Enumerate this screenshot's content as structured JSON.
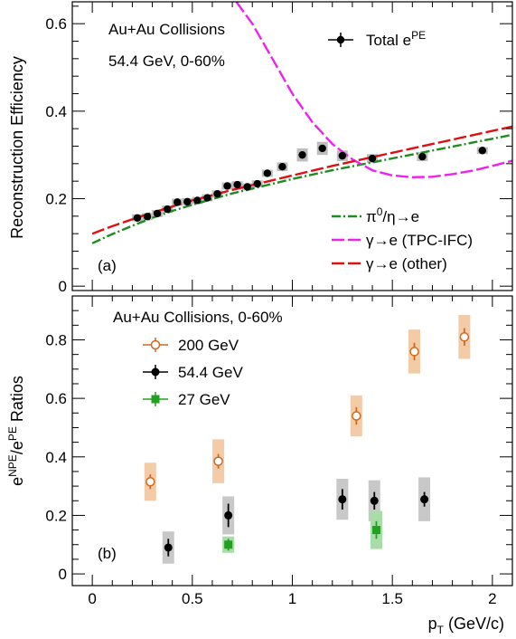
{
  "chart_data": [
    {
      "type": "scatter",
      "panel_label": "(a)",
      "annotations": [
        "Au+Au Collisions",
        "54.4 GeV, 0-60%"
      ],
      "ylabel": "Reconstruction Efficiency",
      "xlim": [
        -0.1,
        2.1
      ],
      "ylim": [
        -0.01,
        0.65
      ],
      "yticks": [
        0,
        0.2,
        0.4,
        0.6
      ],
      "ytick_labels": [
        "0",
        "0.2",
        "0.4",
        "0.6"
      ],
      "series": [
        {
          "name": "Total e",
          "name_sup": "PE",
          "color": "#000000",
          "marker": "circle",
          "x": [
            0.225,
            0.275,
            0.325,
            0.375,
            0.425,
            0.475,
            0.525,
            0.575,
            0.625,
            0.675,
            0.725,
            0.775,
            0.825,
            0.875,
            0.95,
            1.05,
            1.15,
            1.25,
            1.4,
            1.65,
            1.95
          ],
          "y": [
            0.156,
            0.159,
            0.166,
            0.176,
            0.192,
            0.193,
            0.196,
            0.202,
            0.211,
            0.229,
            0.232,
            0.227,
            0.234,
            0.258,
            0.273,
            0.3,
            0.315,
            0.298,
            0.292,
            0.296,
            0.31
          ],
          "syst": [
            0.008,
            0.008,
            0.008,
            0.008,
            0.008,
            0.008,
            0.008,
            0.008,
            0.008,
            0.008,
            0.008,
            0.008,
            0.008,
            0.008,
            0.01,
            0.015,
            0.015,
            0.012,
            0.01,
            0.01,
            0.008
          ]
        }
      ],
      "curves": [
        {
          "name": "π⁰/η→e",
          "legend_label": "π",
          "legend_sup": "0",
          "legend_rest": "/η→e",
          "color": "#1e8c1e",
          "dash": "10 3 2 3",
          "x": [
            0.0,
            0.1,
            0.2,
            0.3,
            0.4,
            0.5,
            0.6,
            0.7,
            0.8,
            0.9,
            1.0,
            1.1,
            1.2,
            1.3,
            1.4,
            1.5,
            1.6,
            1.7,
            1.8,
            1.9,
            2.0,
            2.1
          ],
          "y": [
            0.098,
            0.119,
            0.138,
            0.156,
            0.172,
            0.186,
            0.199,
            0.212,
            0.223,
            0.234,
            0.245,
            0.255,
            0.265,
            0.274,
            0.283,
            0.292,
            0.301,
            0.31,
            0.319,
            0.328,
            0.337,
            0.346
          ]
        },
        {
          "name": "γ→e (TPC-IFC)",
          "color": "#ee22ee",
          "dash": "14 4",
          "x": [
            0.72,
            0.8,
            0.9,
            1.0,
            1.1,
            1.2,
            1.3,
            1.4,
            1.5,
            1.6,
            1.7,
            1.8,
            1.9,
            2.0,
            2.1
          ],
          "y": [
            0.65,
            0.6,
            0.52,
            0.44,
            0.375,
            0.325,
            0.29,
            0.265,
            0.253,
            0.249,
            0.25,
            0.256,
            0.264,
            0.275,
            0.287
          ]
        },
        {
          "name": "γ→e (other)",
          "color": "#dd1111",
          "dash": "14 4",
          "x": [
            0.0,
            0.1,
            0.2,
            0.3,
            0.4,
            0.5,
            0.6,
            0.7,
            0.8,
            0.9,
            1.0,
            1.1,
            1.2,
            1.3,
            1.4,
            1.5,
            1.6,
            1.7,
            1.8,
            1.9,
            2.0,
            2.1
          ],
          "y": [
            0.12,
            0.137,
            0.153,
            0.168,
            0.182,
            0.196,
            0.208,
            0.22,
            0.231,
            0.242,
            0.253,
            0.264,
            0.275,
            0.285,
            0.295,
            0.305,
            0.315,
            0.325,
            0.335,
            0.345,
            0.355,
            0.365
          ]
        }
      ]
    },
    {
      "type": "scatter",
      "panel_label": "(b)",
      "annotations": [
        "Au+Au Collisions,  0-60%"
      ],
      "ylabel_base": "e",
      "ylabel_sup1": "NPE",
      "ylabel_mid": "/e",
      "ylabel_sup2": "PE",
      "ylabel_end": " Ratios",
      "xlabel_base": "p",
      "xlabel_sub": "T",
      "xlabel_end": " (GeV/c)",
      "xlim": [
        -0.1,
        2.1
      ],
      "ylim": [
        -0.04,
        0.95
      ],
      "xticks": [
        0,
        0.5,
        1,
        1.5,
        2
      ],
      "xtick_labels": [
        "0",
        "0.5",
        "1",
        "1.5",
        "2"
      ],
      "yticks": [
        0,
        0.2,
        0.4,
        0.6,
        0.8
      ],
      "ytick_labels": [
        "0",
        "0.2",
        "0.4",
        "0.6",
        "0.8"
      ],
      "series": [
        {
          "name": "200 GeV",
          "color": "#d2691e",
          "band": "#f3cba7",
          "marker": "open-circle",
          "x": [
            0.29,
            0.63,
            1.32,
            1.61,
            1.86
          ],
          "y": [
            0.315,
            0.385,
            0.54,
            0.76,
            0.81
          ],
          "err": [
            0.025,
            0.025,
            0.03,
            0.03,
            0.03
          ],
          "syst": [
            0.065,
            0.075,
            0.07,
            0.075,
            0.075
          ]
        },
        {
          "name": "54.4 GeV",
          "color": "#000000",
          "band": "#c8c8c8",
          "marker": "circle",
          "x": [
            0.38,
            0.68,
            1.25,
            1.41,
            1.66
          ],
          "y": [
            0.09,
            0.2,
            0.255,
            0.25,
            0.255
          ],
          "err": [
            0.03,
            0.04,
            0.035,
            0.03,
            0.025
          ],
          "syst": [
            0.055,
            0.065,
            0.07,
            0.07,
            0.075
          ]
        },
        {
          "name": "27 GeV",
          "color": "#22a022",
          "band": "#a8dca8",
          "marker": "square",
          "x": [
            0.68,
            1.42
          ],
          "y": [
            0.1,
            0.15
          ],
          "err": [
            0.02,
            0.03
          ],
          "syst": [
            0.028,
            0.065
          ]
        }
      ]
    }
  ]
}
